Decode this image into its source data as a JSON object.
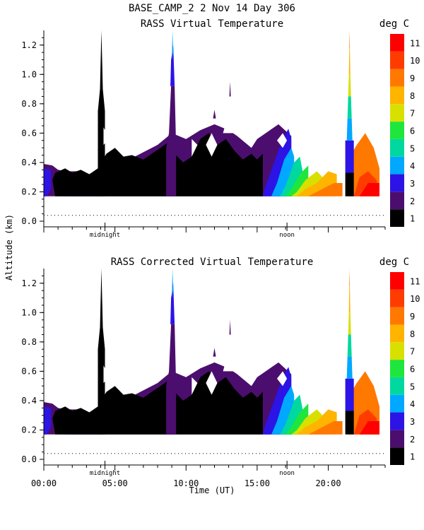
{
  "header": {
    "title": "BASE_CAMP_2    2 Nov 14 Day 306"
  },
  "y_axis_label": "Altitude (km)",
  "x_axis_label": "Time (UT)",
  "markers": {
    "midnight": "midnight",
    "noon": "noon"
  },
  "colorbar": {
    "unit": "deg C",
    "levels": [
      1,
      2,
      3,
      4,
      5,
      6,
      7,
      8,
      9,
      10,
      11
    ],
    "colors": [
      "#000000",
      "#4b0e6e",
      "#2c14e6",
      "#00a8ff",
      "#00d8a0",
      "#1ee63c",
      "#d8e000",
      "#ffb400",
      "#ff7800",
      "#ff3c00",
      "#ff0000"
    ]
  },
  "chart_data": [
    {
      "type": "heatmap",
      "title": "RASS Virtual Temperature",
      "xlabel": "",
      "ylabel": "Altitude (km)",
      "xlim": [
        0,
        24
      ],
      "ylim": [
        0,
        1.3
      ],
      "x_ticks": [],
      "y_ticks": [
        "0.0",
        "0.2",
        "0.4",
        "0.6",
        "0.8",
        "1.0",
        "1.2"
      ],
      "legend": "right",
      "grid": false
    },
    {
      "type": "heatmap",
      "title": "RASS Corrected Virtual Temperature",
      "xlabel": "Time (UT)",
      "ylabel": "Altitude (km)",
      "xlim": [
        0,
        24
      ],
      "ylim": [
        0,
        1.3
      ],
      "x_ticks": [
        "00:00",
        "05:00",
        "10:00",
        "15:00",
        "20:00"
      ],
      "y_ticks": [
        "0.0",
        "0.2",
        "0.4",
        "0.6",
        "0.8",
        "1.0",
        "1.2"
      ],
      "legend": "right",
      "grid": false
    }
  ]
}
